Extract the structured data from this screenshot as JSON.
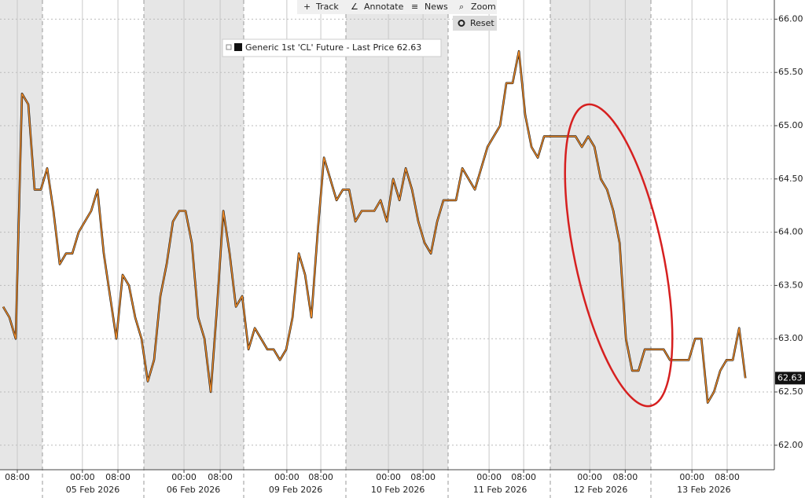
{
  "chart_data": {
    "type": "line",
    "toolbar": [
      "Track",
      "Annotate",
      "News",
      "Zoom",
      "Reset"
    ],
    "series": [
      {
        "name": "Generic 1st 'CL' Future - Last Price 62.63",
        "color": "#f28c28",
        "values": [
          63.3,
          63.2,
          63.0,
          65.3,
          65.2,
          64.4,
          64.4,
          64.6,
          64.2,
          63.7,
          63.8,
          63.8,
          64.0,
          64.1,
          64.2,
          64.4,
          63.8,
          63.4,
          63.0,
          63.6,
          63.5,
          63.2,
          63.0,
          62.6,
          62.8,
          63.4,
          63.7,
          64.1,
          64.2,
          64.2,
          63.9,
          63.2,
          63.0,
          62.5,
          63.3,
          64.2,
          63.8,
          63.3,
          63.4,
          62.9,
          63.1,
          63.0,
          62.9,
          62.9,
          62.8,
          62.9,
          63.2,
          63.8,
          63.6,
          63.2,
          64.0,
          64.7,
          64.5,
          64.3,
          64.4,
          64.4,
          64.1,
          64.2,
          64.2,
          64.2,
          64.3,
          64.1,
          64.5,
          64.3,
          64.6,
          64.4,
          64.1,
          63.9,
          63.8,
          64.1,
          64.3,
          64.3,
          64.3,
          64.6,
          64.5,
          64.4,
          64.6,
          64.8,
          64.9,
          65.0,
          65.4,
          65.4,
          65.7,
          65.1,
          64.8,
          64.7,
          64.9,
          64.9,
          64.9,
          64.9,
          64.9,
          64.9,
          64.8,
          64.9,
          64.8,
          64.5,
          64.4,
          64.2,
          63.9,
          63.0,
          62.7,
          62.7,
          62.9,
          62.9,
          62.9,
          62.9,
          62.8,
          62.8,
          62.8,
          62.8,
          63.0,
          63.0,
          62.4,
          62.5,
          62.7,
          62.8,
          62.8,
          63.1,
          62.63
        ]
      }
    ],
    "xlim": [
      -0.5,
      122.6
    ],
    "xticks": [
      {
        "value": 2.25,
        "label": "08:00"
      },
      {
        "value": 12.6,
        "label": "00:00"
      },
      {
        "value": 18.25,
        "label": "08:00"
      },
      {
        "value": 28.75,
        "label": "00:00"
      },
      {
        "value": 34.5,
        "label": "08:00"
      },
      {
        "value": 45.1,
        "label": "00:00"
      },
      {
        "value": 50.5,
        "label": "08:00"
      },
      {
        "value": 61.25,
        "label": "00:00"
      },
      {
        "value": 66.75,
        "label": "08:00"
      },
      {
        "value": 77.25,
        "label": "00:00"
      },
      {
        "value": 82.75,
        "label": "08:00"
      },
      {
        "value": 93.25,
        "label": "00:00"
      },
      {
        "value": 98.9,
        "label": "08:00"
      },
      {
        "value": 109.5,
        "label": "00:00"
      },
      {
        "value": 115.1,
        "label": "08:00"
      }
    ],
    "xtick_dates": [
      {
        "value": 14.25,
        "label": "05 Feb 2026"
      },
      {
        "value": 30.25,
        "label": "06 Feb 2026"
      },
      {
        "value": 46.5,
        "label": "09 Feb 2026"
      },
      {
        "value": 62.75,
        "label": "10 Feb 2026"
      },
      {
        "value": 79,
        "label": "11 Feb 2026"
      },
      {
        "value": 95,
        "label": "12 Feb 2026"
      },
      {
        "value": 111.4,
        "label": "13 Feb 2026"
      }
    ],
    "ylim": [
      61.77,
      66.18
    ],
    "yticks": [
      {
        "value": 62,
        "label": "62.00"
      },
      {
        "value": 62.5,
        "label": "62.50"
      },
      {
        "value": 63,
        "label": "63.00"
      },
      {
        "value": 63.5,
        "label": "63.50"
      },
      {
        "value": 64,
        "label": "64.00"
      },
      {
        "value": 64.5,
        "label": "64.50"
      },
      {
        "value": 65,
        "label": "65.00"
      },
      {
        "value": 65.5,
        "label": "65.50"
      },
      {
        "value": 66,
        "label": "66.00"
      }
    ],
    "grid": true
  }
}
